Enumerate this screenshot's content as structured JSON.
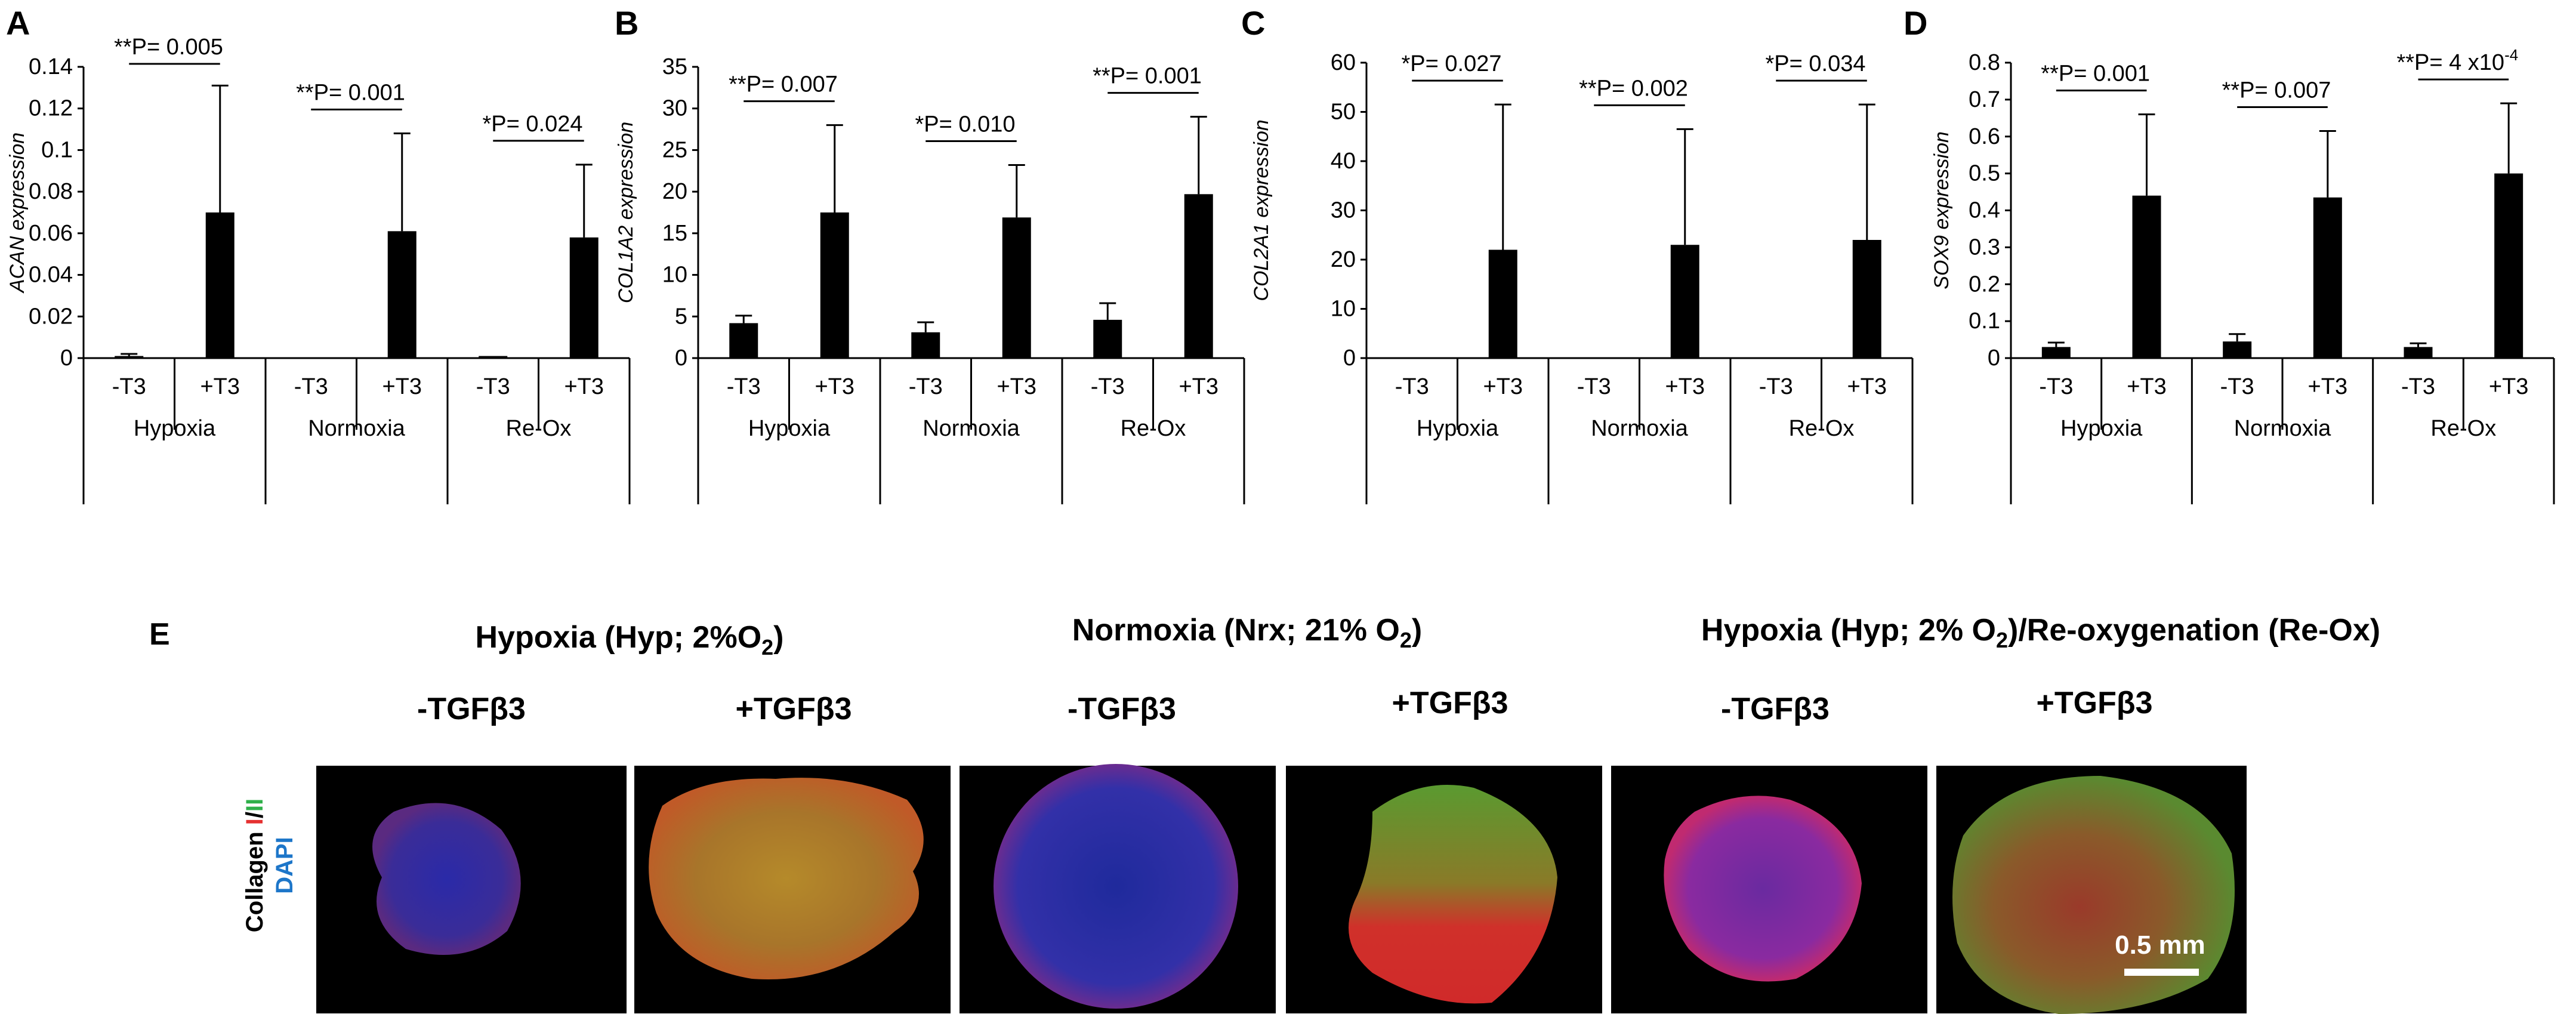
{
  "chart_data": [
    {
      "panel": "A",
      "type": "bar",
      "ylabel": "ACAN expression",
      "ylim": [
        0,
        0.14
      ],
      "yticks": [
        "0",
        "0.02",
        "0.04",
        "0.06",
        "0.08",
        "0.1",
        "0.12",
        "0.14"
      ],
      "categories": [
        "-T3",
        "+T3",
        "-T3",
        "+T3",
        "-T3",
        "+T3"
      ],
      "groups": [
        "Hypoxia",
        "Normoxia",
        "Re-Ox"
      ],
      "values": [
        0.001,
        0.07,
        0.0,
        0.061,
        0.001,
        0.058
      ],
      "errors": [
        0.001,
        0.061,
        0.0,
        0.047,
        0.0,
        0.035
      ],
      "annotations": [
        "**P= 0.005",
        "**P= 0.001",
        "*P= 0.024"
      ]
    },
    {
      "panel": "B",
      "type": "bar",
      "ylabel": "COL1A2 expression",
      "ylim": [
        0,
        35
      ],
      "yticks": [
        "0",
        "5",
        "10",
        "15",
        "20",
        "25",
        "30",
        "35"
      ],
      "categories": [
        "-T3",
        "+T3",
        "-T3",
        "+T3",
        "-T3",
        "+T3"
      ],
      "groups": [
        "Hypoxia",
        "Normoxia",
        "Re-Ox"
      ],
      "values": [
        4.2,
        17.5,
        3.1,
        16.9,
        4.6,
        19.7
      ],
      "errors": [
        0.9,
        10.5,
        1.2,
        6.3,
        2.0,
        9.3
      ],
      "annotations": [
        "**P= 0.007",
        "*P= 0.010",
        "**P= 0.001"
      ]
    },
    {
      "panel": "C",
      "type": "bar",
      "ylabel": "COL2A1 expression",
      "ylim": [
        0,
        60
      ],
      "yticks": [
        "0",
        "10",
        "20",
        "30",
        "40",
        "50",
        "60"
      ],
      "categories": [
        "-T3",
        "+T3",
        "-T3",
        "+T3",
        "-T3",
        "+T3"
      ],
      "groups": [
        "Hypoxia",
        "Normoxia",
        "Re-Ox"
      ],
      "values": [
        0.0,
        22.0,
        0.0,
        23.0,
        0.0,
        24.0
      ],
      "errors": [
        0.0,
        29.5,
        0.0,
        23.5,
        0.0,
        27.5
      ],
      "annotations": [
        "*P= 0.027",
        "**P= 0.002",
        "*P= 0.034"
      ]
    },
    {
      "panel": "D",
      "type": "bar",
      "ylabel": "SOX9 expression",
      "ylim": [
        0,
        0.8
      ],
      "yticks": [
        "0",
        "0.1",
        "0.2",
        "0.3",
        "0.4",
        "0.5",
        "0.6",
        "0.7",
        "0.8"
      ],
      "categories": [
        "-T3",
        "+T3",
        "-T3",
        "+T3",
        "-T3",
        "+T3"
      ],
      "groups": [
        "Hypoxia",
        "Normoxia",
        "Re-Ox"
      ],
      "values": [
        0.03,
        0.44,
        0.045,
        0.435,
        0.03,
        0.5
      ],
      "errors": [
        0.012,
        0.22,
        0.02,
        0.18,
        0.01,
        0.19
      ],
      "annotations": [
        "**P= 0.001",
        "**P= 0.007",
        "**P= 4 x10-4"
      ],
      "annotation_superscript": "-4"
    }
  ],
  "micrographs": {
    "panel_label": "E",
    "headers": [
      {
        "pre": "Hypoxia (Hyp; 2%O",
        "sub": "2",
        "post": ")"
      },
      {
        "pre": "Normoxia (Nrx; 21% O",
        "sub": "2",
        "post": ")"
      },
      {
        "pre": "Hypoxia (Hyp; 2% O",
        "sub": "2",
        "post": ")/Re-oxygenation (Re-Ox)"
      }
    ],
    "conditions": [
      "-TGFβ3",
      "+TGFβ3",
      "-TGFβ3",
      "+TGFβ3",
      "-TGFβ3",
      "+TGFβ3"
    ],
    "stain_label": {
      "collagen": "Collagen ",
      "col1": "I",
      "slash": "/",
      "col2": "II",
      "dapi": "DAPI"
    },
    "stain_colors": {
      "col1": "#e53030",
      "col2": "#2fb04a",
      "dapi": "#1d76c9"
    },
    "scale_bar": "0.5 mm"
  }
}
